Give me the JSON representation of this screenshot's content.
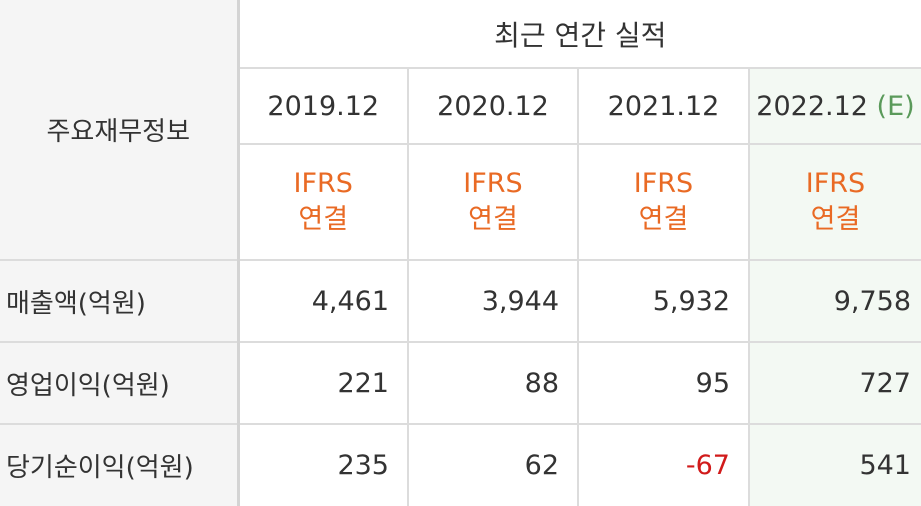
{
  "header": {
    "section_label": "주요재무정보",
    "title": "최근 연간 실적"
  },
  "columns": [
    {
      "year": "2019.12",
      "estimate": "",
      "basis_line1": "IFRS",
      "basis_line2": "연결"
    },
    {
      "year": "2020.12",
      "estimate": "",
      "basis_line1": "IFRS",
      "basis_line2": "연결"
    },
    {
      "year": "2021.12",
      "estimate": "",
      "basis_line1": "IFRS",
      "basis_line2": "연결"
    },
    {
      "year": "2022.12",
      "estimate": "(E)",
      "basis_line1": "IFRS",
      "basis_line2": "연결"
    }
  ],
  "rows": [
    {
      "label": "매출액(억원)",
      "values": [
        "4,461",
        "3,944",
        "5,932",
        "9,758"
      ]
    },
    {
      "label": "영업이익(억원)",
      "values": [
        "221",
        "88",
        "95",
        "727"
      ]
    },
    {
      "label": "당기순이익(억원)",
      "values": [
        "235",
        "62",
        "-67",
        "541"
      ]
    }
  ],
  "colors": {
    "ifrs_orange": "#e96a24",
    "estimate_green": "#5a9a5a",
    "negative_red": "#d11a1a",
    "estimate_column_bg": "#f3f9f3",
    "label_bg": "#f5f5f5"
  }
}
